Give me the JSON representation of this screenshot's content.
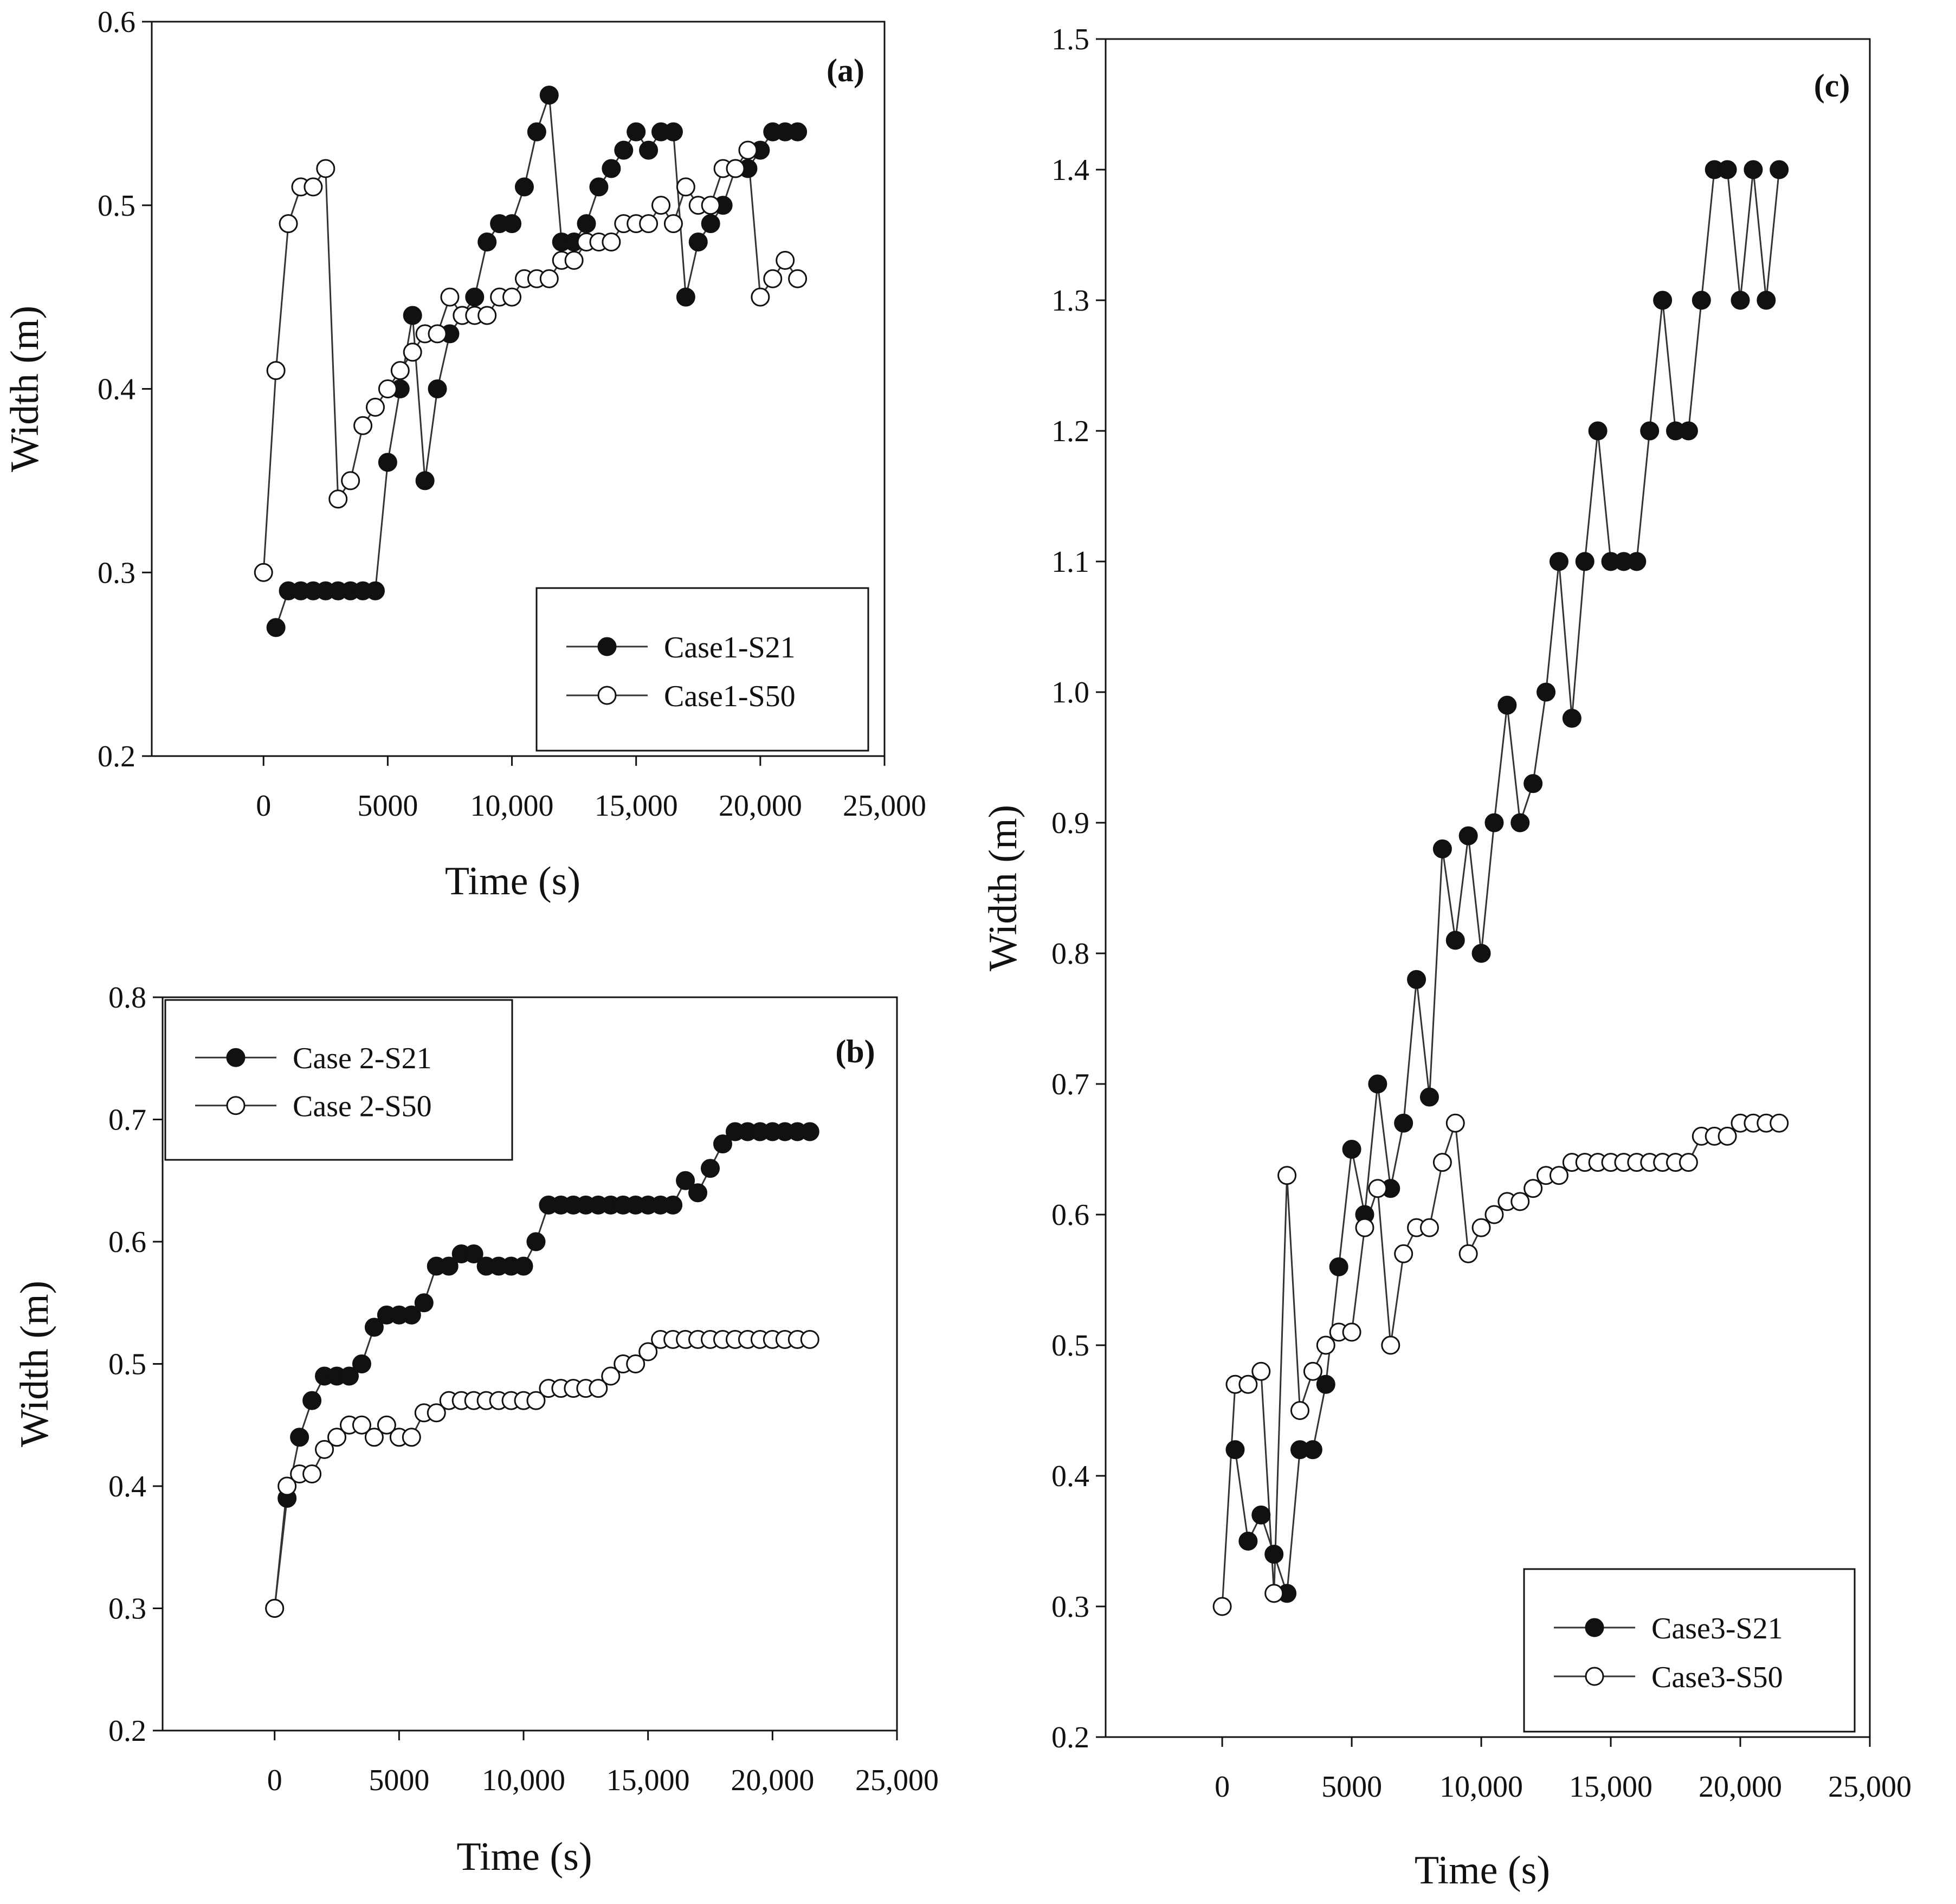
{
  "figure": {
    "description_free": true
  },
  "chart_data": [
    {
      "id": "a",
      "type": "line",
      "panel_label": "(a)",
      "xlabel": "Time (s)",
      "ylabel": "Width (m)",
      "xlim": [
        -4500,
        25000
      ],
      "ylim": [
        0.2,
        0.6
      ],
      "xticks": [
        0,
        5000,
        10000,
        15000,
        20000,
        25000
      ],
      "xtick_labels": [
        "0",
        "5000",
        "10,000",
        "15,000",
        "20,000",
        "25,000"
      ],
      "yticks": [
        0.2,
        0.3,
        0.4,
        0.5,
        0.6
      ],
      "ytick_labels": [
        "0.2",
        "0.3",
        "0.4",
        "0.5",
        "0.6"
      ],
      "legend_position": "bottom-right",
      "series": [
        {
          "name": "Case1-S21",
          "marker": "filled",
          "x": [
            500,
            1000,
            1500,
            2000,
            2500,
            3000,
            3500,
            4000,
            4500,
            5000,
            5500,
            6000,
            6500,
            7000,
            7500,
            8000,
            8500,
            9000,
            9500,
            10000,
            10500,
            11000,
            11500,
            12000,
            12500,
            13000,
            13500,
            14000,
            14500,
            15000,
            15500,
            16000,
            16500,
            17000,
            17500,
            18000,
            18500,
            19000,
            19500,
            20000,
            20500,
            21000,
            21500
          ],
          "y": [
            0.27,
            0.29,
            0.29,
            0.29,
            0.29,
            0.29,
            0.29,
            0.29,
            0.29,
            0.36,
            0.4,
            0.44,
            0.35,
            0.4,
            0.43,
            0.44,
            0.45,
            0.48,
            0.49,
            0.49,
            0.51,
            0.54,
            0.56,
            0.48,
            0.48,
            0.49,
            0.51,
            0.52,
            0.53,
            0.54,
            0.53,
            0.54,
            0.54,
            0.45,
            0.48,
            0.49,
            0.5,
            0.52,
            0.52,
            0.53,
            0.54,
            0.54,
            0.54
          ]
        },
        {
          "name": "Case1-S50",
          "marker": "open",
          "x": [
            0,
            500,
            1000,
            1500,
            2000,
            2500,
            3000,
            3500,
            4000,
            4500,
            5000,
            5500,
            6000,
            6500,
            7000,
            7500,
            8000,
            8500,
            9000,
            9500,
            10000,
            10500,
            11000,
            11500,
            12000,
            12500,
            13000,
            13500,
            14000,
            14500,
            15000,
            15500,
            16000,
            16500,
            17000,
            17500,
            18000,
            18500,
            19000,
            19500,
            20000,
            20500,
            21000,
            21500
          ],
          "y": [
            0.3,
            0.41,
            0.49,
            0.51,
            0.51,
            0.52,
            0.34,
            0.35,
            0.38,
            0.39,
            0.4,
            0.41,
            0.42,
            0.43,
            0.43,
            0.45,
            0.44,
            0.44,
            0.44,
            0.45,
            0.45,
            0.46,
            0.46,
            0.46,
            0.47,
            0.47,
            0.48,
            0.48,
            0.48,
            0.49,
            0.49,
            0.49,
            0.5,
            0.49,
            0.51,
            0.5,
            0.5,
            0.52,
            0.52,
            0.53,
            0.45,
            0.46,
            0.47,
            0.46
          ]
        }
      ]
    },
    {
      "id": "b",
      "type": "line",
      "panel_label": "(b)",
      "xlabel": "Time (s)",
      "ylabel": "Width (m)",
      "xlim": [
        -4500,
        25000
      ],
      "ylim": [
        0.2,
        0.8
      ],
      "xticks": [
        0,
        5000,
        10000,
        15000,
        20000,
        25000
      ],
      "xtick_labels": [
        "0",
        "5000",
        "10,000",
        "15,000",
        "20,000",
        "25,000"
      ],
      "yticks": [
        0.2,
        0.3,
        0.4,
        0.5,
        0.6,
        0.7,
        0.8
      ],
      "ytick_labels": [
        "0.2",
        "0.3",
        "0.4",
        "0.5",
        "0.6",
        "0.7",
        "0.8"
      ],
      "legend_position": "top-left",
      "series": [
        {
          "name": "Case 2-S21",
          "marker": "filled",
          "x": [
            0,
            500,
            1000,
            1500,
            2000,
            2500,
            3000,
            3500,
            4000,
            4500,
            5000,
            5500,
            6000,
            6500,
            7000,
            7500,
            8000,
            8500,
            9000,
            9500,
            10000,
            10500,
            11000,
            11500,
            12000,
            12500,
            13000,
            13500,
            14000,
            14500,
            15000,
            15500,
            16000,
            16500,
            17000,
            17500,
            18000,
            18500,
            19000,
            19500,
            20000,
            20500,
            21000,
            21500
          ],
          "y": [
            0.3,
            0.39,
            0.44,
            0.47,
            0.49,
            0.49,
            0.49,
            0.5,
            0.53,
            0.54,
            0.54,
            0.54,
            0.55,
            0.58,
            0.58,
            0.59,
            0.59,
            0.58,
            0.58,
            0.58,
            0.58,
            0.6,
            0.63,
            0.63,
            0.63,
            0.63,
            0.63,
            0.63,
            0.63,
            0.63,
            0.63,
            0.63,
            0.63,
            0.65,
            0.64,
            0.66,
            0.68,
            0.69,
            0.69,
            0.69,
            0.69,
            0.69,
            0.69,
            0.69
          ]
        },
        {
          "name": "Case 2-S50",
          "marker": "open",
          "x": [
            0,
            500,
            1000,
            1500,
            2000,
            2500,
            3000,
            3500,
            4000,
            4500,
            5000,
            5500,
            6000,
            6500,
            7000,
            7500,
            8000,
            8500,
            9000,
            9500,
            10000,
            10500,
            11000,
            11500,
            12000,
            12500,
            13000,
            13500,
            14000,
            14500,
            15000,
            15500,
            16000,
            16500,
            17000,
            17500,
            18000,
            18500,
            19000,
            19500,
            20000,
            20500,
            21000,
            21500
          ],
          "y": [
            0.3,
            0.4,
            0.41,
            0.41,
            0.43,
            0.44,
            0.45,
            0.45,
            0.44,
            0.45,
            0.44,
            0.44,
            0.46,
            0.46,
            0.47,
            0.47,
            0.47,
            0.47,
            0.47,
            0.47,
            0.47,
            0.47,
            0.48,
            0.48,
            0.48,
            0.48,
            0.48,
            0.49,
            0.5,
            0.5,
            0.51,
            0.52,
            0.52,
            0.52,
            0.52,
            0.52,
            0.52,
            0.52,
            0.52,
            0.52,
            0.52,
            0.52,
            0.52,
            0.52
          ]
        }
      ]
    },
    {
      "id": "c",
      "type": "line",
      "panel_label": "(c)",
      "xlabel": "Time (s)",
      "ylabel": "Width (m)",
      "xlim": [
        -4500,
        25000
      ],
      "ylim": [
        0.2,
        1.5
      ],
      "xticks": [
        0,
        5000,
        10000,
        15000,
        20000,
        25000
      ],
      "xtick_labels": [
        "0",
        "5000",
        "10,000",
        "15,000",
        "20,000",
        "25,000"
      ],
      "yticks": [
        0.2,
        0.3,
        0.4,
        0.5,
        0.6,
        0.7,
        0.8,
        0.9,
        1.0,
        1.1,
        1.2,
        1.3,
        1.4,
        1.5
      ],
      "ytick_labels": [
        "0.2",
        "0.3",
        "0.4",
        "0.5",
        "0.6",
        "0.7",
        "0.8",
        "0.9",
        "1.0",
        "1.1",
        "1.2",
        "1.3",
        "1.4",
        "1.5"
      ],
      "legend_position": "bottom-right",
      "series": [
        {
          "name": "Case3-S21",
          "marker": "filled",
          "x": [
            500,
            1000,
            1500,
            2000,
            2500,
            3000,
            3500,
            4000,
            4500,
            5000,
            5500,
            6000,
            6500,
            7000,
            7500,
            8000,
            8500,
            9000,
            9500,
            10000,
            10500,
            11000,
            11500,
            12000,
            12500,
            13000,
            13500,
            14000,
            14500,
            15000,
            15500,
            16000,
            16500,
            17000,
            17500,
            18000,
            18500,
            19000,
            19500,
            20000,
            20500,
            21000,
            21500
          ],
          "y": [
            0.42,
            0.35,
            0.37,
            0.34,
            0.31,
            0.42,
            0.42,
            0.47,
            0.56,
            0.65,
            0.6,
            0.7,
            0.62,
            0.67,
            0.78,
            0.69,
            0.88,
            0.81,
            0.89,
            0.8,
            0.9,
            0.99,
            0.9,
            0.93,
            1.0,
            1.1,
            0.98,
            1.1,
            1.2,
            1.1,
            1.1,
            1.1,
            1.2,
            1.3,
            1.2,
            1.2,
            1.3,
            1.4,
            1.4,
            1.3,
            1.4,
            1.3,
            1.4
          ]
        },
        {
          "name": "Case3-S50",
          "marker": "open",
          "x": [
            0,
            500,
            1000,
            1500,
            2000,
            2500,
            3000,
            3500,
            4000,
            4500,
            5000,
            5500,
            6000,
            6500,
            7000,
            7500,
            8000,
            8500,
            9000,
            9500,
            10000,
            10500,
            11000,
            11500,
            12000,
            12500,
            13000,
            13500,
            14000,
            14500,
            15000,
            15500,
            16000,
            16500,
            17000,
            17500,
            18000,
            18500,
            19000,
            19500,
            20000,
            20500,
            21000,
            21500
          ],
          "y": [
            0.3,
            0.47,
            0.47,
            0.48,
            0.31,
            0.63,
            0.45,
            0.48,
            0.5,
            0.51,
            0.51,
            0.59,
            0.62,
            0.5,
            0.57,
            0.59,
            0.59,
            0.64,
            0.67,
            0.57,
            0.59,
            0.6,
            0.61,
            0.61,
            0.62,
            0.63,
            0.63,
            0.64,
            0.64,
            0.64,
            0.64,
            0.64,
            0.64,
            0.64,
            0.64,
            0.64,
            0.64,
            0.66,
            0.66,
            0.66,
            0.67,
            0.67,
            0.67,
            0.67
          ]
        }
      ]
    }
  ]
}
